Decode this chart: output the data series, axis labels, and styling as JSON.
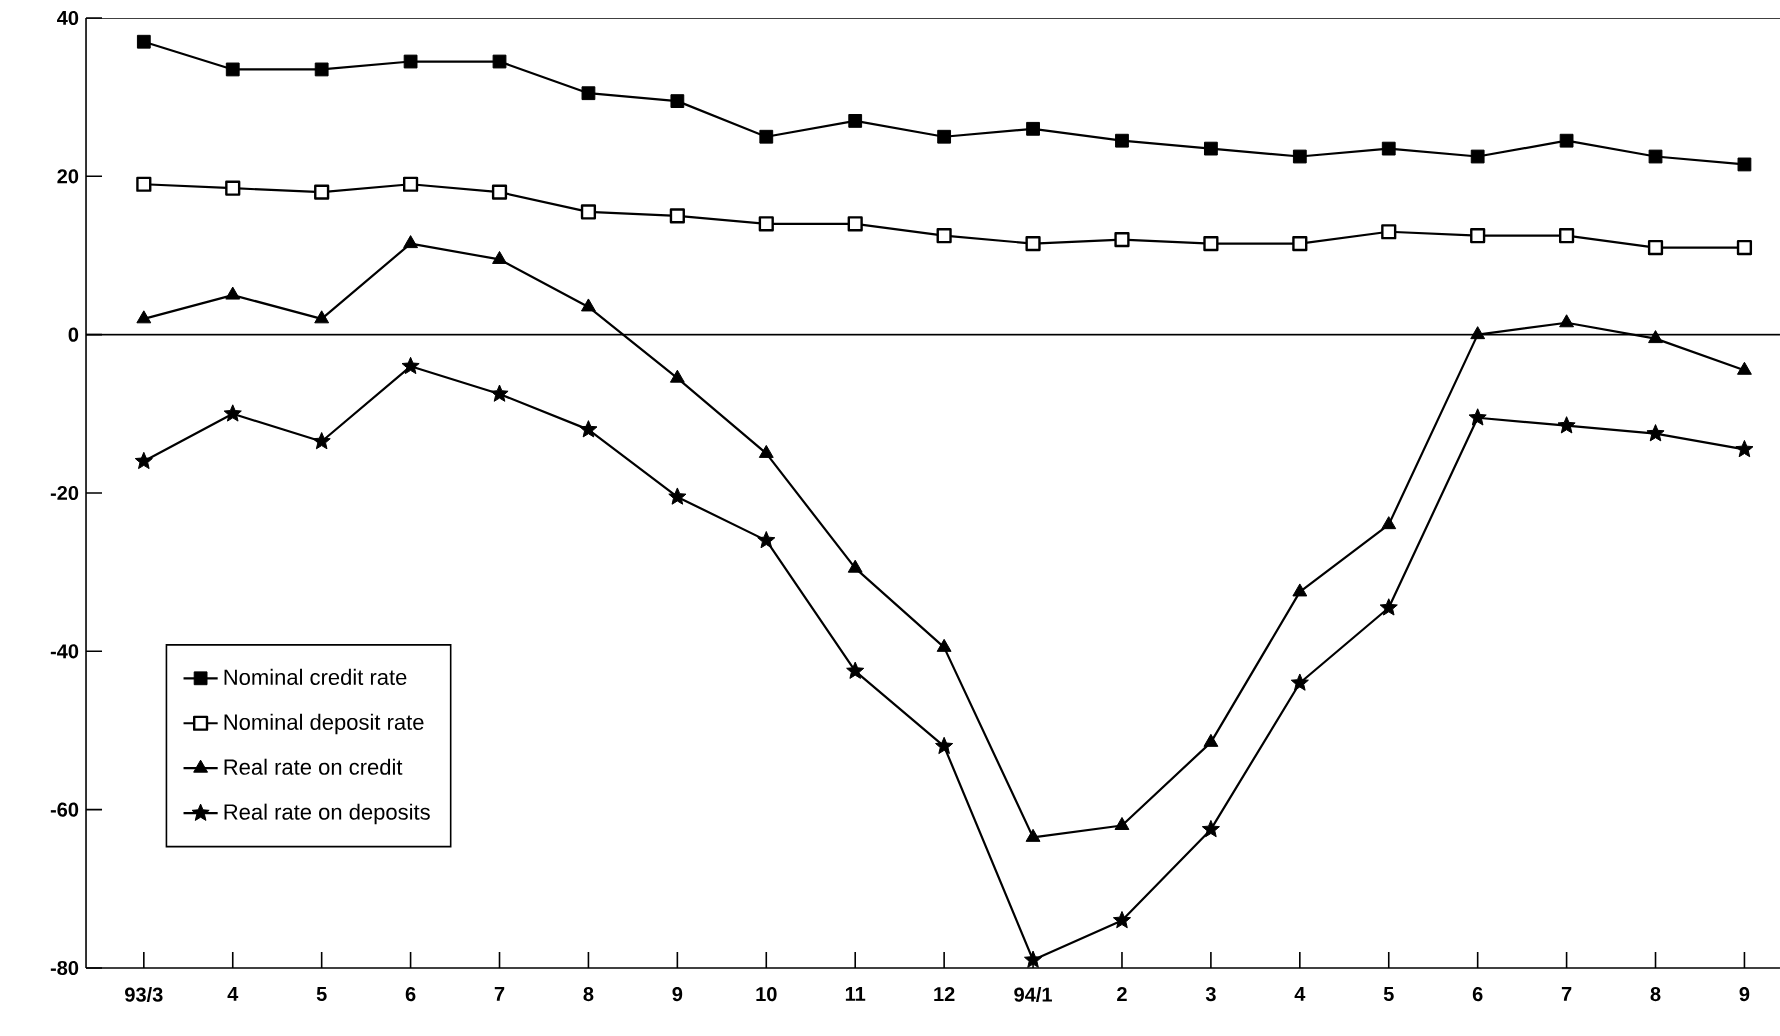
{
  "chart_data": {
    "type": "line",
    "categories": [
      "93/3",
      "4",
      "5",
      "6",
      "7",
      "8",
      "9",
      "10",
      "11",
      "12",
      "94/1",
      "2",
      "3",
      "4",
      "5",
      "6",
      "7",
      "8",
      "9"
    ],
    "series": [
      {
        "name": "Nominal credit rate",
        "color": "#000000",
        "marker": "square",
        "values": [
          37,
          33.5,
          33.5,
          34.5,
          34.5,
          30.5,
          29.5,
          25,
          27,
          25,
          26,
          24.5,
          23.5,
          22.5,
          23.5,
          22.5,
          24.5,
          22.5,
          21.5
        ]
      },
      {
        "name": "Nominal deposit rate",
        "color": "#000000",
        "marker": "square",
        "values": [
          19,
          18.5,
          18,
          19,
          18,
          15.5,
          15,
          14,
          14,
          12.5,
          11.5,
          12,
          11.5,
          11.5,
          13,
          12.5,
          12.5,
          11,
          11
        ]
      },
      {
        "name": "Real rate on credit",
        "color": "#000000",
        "marker": "triangle",
        "values": [
          2,
          5,
          2,
          11.5,
          9.5,
          3.5,
          -5.5,
          -15,
          -29.5,
          -39.5,
          -63.5,
          -62,
          -51.5,
          -32.5,
          -24,
          0,
          1.5,
          -0.5,
          -4.5
        ]
      },
      {
        "name": "Real rate on deposits",
        "color": "#000000",
        "marker": "star",
        "values": [
          -16,
          -10,
          -13.5,
          -4,
          -7.5,
          -12,
          -20.5,
          -26,
          -42.5,
          -52,
          -79,
          -74,
          -62.5,
          -44,
          -34.5,
          -10.5,
          -11.5,
          -12.5,
          -14.5
        ]
      }
    ],
    "ylim": [
      -80,
      40
    ],
    "yticks": [
      -80,
      -60,
      -40,
      -20,
      0,
      20,
      40
    ],
    "ref_lines": [
      {
        "axis": "y",
        "value": 0
      }
    ],
    "legend": "bottom left",
    "line_style": "solid",
    "grid": false
  }
}
